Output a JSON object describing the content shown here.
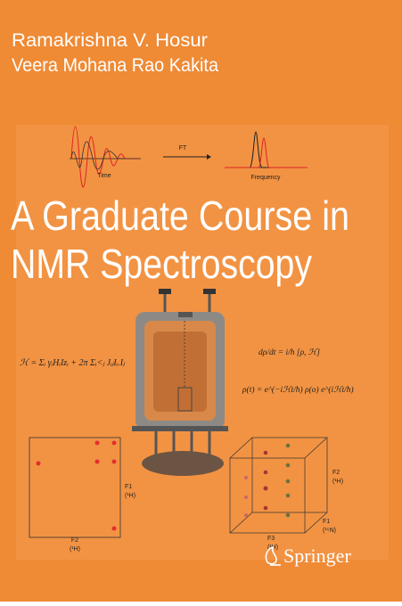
{
  "authors": [
    "Ramakrishna V. Hosur",
    "Veera Mohana Rao Kakita"
  ],
  "figure": {
    "time_label": "Time",
    "ft_label": "FT",
    "frequency_label": "Frequency"
  },
  "title": [
    "A Graduate Course in",
    "NMR Spectroscopy"
  ],
  "equations": [
    "ℋ = Σᵢ γᵢHᵢIzᵢ + 2π Σᵢ<ⱼ JᵢⱼIᵢ.Iⱼ",
    "dρ/dt = i/ħ [ρ, ℋ]",
    "ρ(t) = e^(−iℋt/ħ) ρ(o) e^(iℋt/ħ)"
  ],
  "spectrum_2d": {
    "f1": {
      "name": "F1",
      "nucleus": "(¹H)"
    },
    "f2": {
      "name": "F2",
      "nucleus": "(¹H)"
    }
  },
  "spectrum_3d": {
    "f2": {
      "name": "F2",
      "nucleus": "(¹H)"
    },
    "f1": {
      "name": "F1",
      "nucleus": "(¹⁵N)"
    },
    "f3": {
      "name": "F3",
      "nucleus": "(¹H)"
    }
  },
  "publisher": "Springer"
}
